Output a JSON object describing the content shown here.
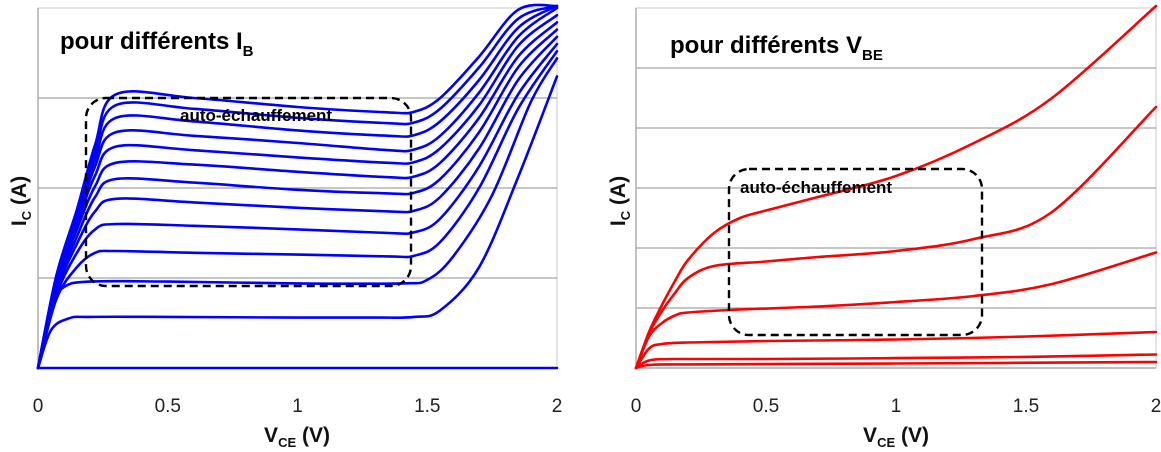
{
  "chart_data": [
    {
      "type": "line",
      "title": {
        "main": "pour différents I",
        "sub": "B"
      },
      "xlabel": {
        "main": "V",
        "sub": "CE",
        "suffix": " (V)"
      },
      "ylabel": {
        "main": "I",
        "sub": "C",
        "suffix": " (A)"
      },
      "xlim": [
        0,
        2
      ],
      "ylim": [
        0,
        10
      ],
      "x_ticks": [
        "0",
        "0.5",
        "1",
        "1.5",
        "2"
      ],
      "y_ticks_labeled": false,
      "grid": "horizontal",
      "color": "#0000ff",
      "annotation": {
        "text": "auto-échauffement",
        "box": "dashed"
      },
      "series": [
        {
          "values": [
            [
              0,
              0
            ],
            [
              2,
              0
            ]
          ]
        },
        {
          "values": [
            [
              0,
              0
            ],
            [
              0.05,
              1.05
            ],
            [
              0.12,
              1.38
            ],
            [
              0.2,
              1.42
            ],
            [
              0.5,
              1.42
            ],
            [
              1,
              1.4
            ],
            [
              1.3,
              1.4
            ],
            [
              1.45,
              1.42
            ],
            [
              1.55,
              1.6
            ],
            [
              1.7,
              2.8
            ],
            [
              1.85,
              5.3
            ],
            [
              2,
              8.1
            ]
          ]
        },
        {
          "values": [
            [
              0,
              0
            ],
            [
              0.05,
              1.7
            ],
            [
              0.1,
              2.25
            ],
            [
              0.2,
              2.4
            ],
            [
              0.5,
              2.4
            ],
            [
              1,
              2.35
            ],
            [
              1.4,
              2.35
            ],
            [
              1.5,
              2.45
            ],
            [
              1.6,
              3.1
            ],
            [
              1.75,
              4.8
            ],
            [
              1.9,
              7.4
            ],
            [
              2,
              8.6
            ]
          ]
        },
        {
          "values": [
            [
              0,
              0
            ],
            [
              0.07,
              1.9
            ],
            [
              0.15,
              2.8
            ],
            [
              0.22,
              3.2
            ],
            [
              0.3,
              3.25
            ],
            [
              0.6,
              3.2
            ],
            [
              1,
              3.15
            ],
            [
              1.35,
              3.1
            ],
            [
              1.45,
              3.12
            ],
            [
              1.55,
              3.5
            ],
            [
              1.7,
              5.0
            ],
            [
              1.85,
              7.2
            ],
            [
              2,
              8.8
            ]
          ]
        },
        {
          "values": [
            [
              0,
              0
            ],
            [
              0.07,
              2.0
            ],
            [
              0.15,
              3.2
            ],
            [
              0.22,
              3.85
            ],
            [
              0.3,
              4.0
            ],
            [
              0.6,
              3.95
            ],
            [
              1,
              3.85
            ],
            [
              1.35,
              3.75
            ],
            [
              1.45,
              3.77
            ],
            [
              1.55,
              4.15
            ],
            [
              1.7,
              5.6
            ],
            [
              1.85,
              7.6
            ],
            [
              2,
              9.0
            ]
          ]
        },
        {
          "values": [
            [
              0,
              0
            ],
            [
              0.07,
              2.1
            ],
            [
              0.15,
              3.45
            ],
            [
              0.22,
              4.35
            ],
            [
              0.3,
              4.7
            ],
            [
              0.6,
              4.6
            ],
            [
              1,
              4.45
            ],
            [
              1.35,
              4.35
            ],
            [
              1.45,
              4.37
            ],
            [
              1.55,
              4.75
            ],
            [
              1.7,
              6.1
            ],
            [
              1.85,
              8.0
            ],
            [
              2,
              9.2
            ]
          ]
        },
        {
          "values": [
            [
              0,
              0
            ],
            [
              0.07,
              2.2
            ],
            [
              0.15,
              3.65
            ],
            [
              0.22,
              4.75
            ],
            [
              0.3,
              5.25
            ],
            [
              0.6,
              5.15
            ],
            [
              1,
              4.95
            ],
            [
              1.35,
              4.85
            ],
            [
              1.45,
              4.87
            ],
            [
              1.55,
              5.25
            ],
            [
              1.7,
              6.55
            ],
            [
              1.85,
              8.35
            ],
            [
              2,
              9.4
            ]
          ]
        },
        {
          "values": [
            [
              0,
              0
            ],
            [
              0.07,
              2.3
            ],
            [
              0.15,
              3.85
            ],
            [
              0.22,
              5.05
            ],
            [
              0.3,
              5.7
            ],
            [
              0.6,
              5.65
            ],
            [
              1,
              5.45
            ],
            [
              1.35,
              5.3
            ],
            [
              1.45,
              5.32
            ],
            [
              1.55,
              5.7
            ],
            [
              1.7,
              6.95
            ],
            [
              1.85,
              8.65
            ],
            [
              2,
              9.6
            ]
          ]
        },
        {
          "values": [
            [
              0,
              0
            ],
            [
              0.07,
              2.35
            ],
            [
              0.15,
              4.0
            ],
            [
              0.22,
              5.35
            ],
            [
              0.3,
              6.15
            ],
            [
              0.6,
              6.05
            ],
            [
              1,
              5.85
            ],
            [
              1.35,
              5.7
            ],
            [
              1.45,
              5.72
            ],
            [
              1.55,
              6.1
            ],
            [
              1.7,
              7.3
            ],
            [
              1.85,
              8.95
            ],
            [
              2,
              9.8
            ]
          ]
        },
        {
          "values": [
            [
              0,
              0
            ],
            [
              0.07,
              2.4
            ],
            [
              0.15,
              4.1
            ],
            [
              0.22,
              5.6
            ],
            [
              0.3,
              6.55
            ],
            [
              0.6,
              6.45
            ],
            [
              1,
              6.25
            ],
            [
              1.35,
              6.05
            ],
            [
              1.45,
              6.07
            ],
            [
              1.55,
              6.45
            ],
            [
              1.7,
              7.65
            ],
            [
              1.85,
              9.2
            ],
            [
              2,
              10.0
            ]
          ]
        },
        {
          "values": [
            [
              0,
              0
            ],
            [
              0.07,
              2.45
            ],
            [
              0.15,
              4.2
            ],
            [
              0.22,
              5.8
            ],
            [
              0.3,
              6.95
            ],
            [
              0.6,
              6.85
            ],
            [
              1,
              6.6
            ],
            [
              1.35,
              6.45
            ],
            [
              1.45,
              6.47
            ],
            [
              1.55,
              6.85
            ],
            [
              1.7,
              8.0
            ],
            [
              1.85,
              9.45
            ],
            [
              2,
              10.2
            ]
          ]
        },
        {
          "values": [
            [
              0,
              0
            ],
            [
              0.07,
              2.5
            ],
            [
              0.15,
              4.3
            ],
            [
              0.22,
              6.0
            ],
            [
              0.3,
              7.3
            ],
            [
              0.6,
              7.2
            ],
            [
              1,
              6.95
            ],
            [
              1.35,
              6.8
            ],
            [
              1.45,
              6.82
            ],
            [
              1.55,
              7.2
            ],
            [
              1.7,
              8.35
            ],
            [
              1.85,
              9.7
            ],
            [
              2,
              10.4
            ]
          ]
        },
        {
          "values": [
            [
              0,
              0
            ],
            [
              0.07,
              2.55
            ],
            [
              0.15,
              4.4
            ],
            [
              0.22,
              6.2
            ],
            [
              0.3,
              7.6
            ],
            [
              0.6,
              7.5
            ],
            [
              1,
              7.25
            ],
            [
              1.35,
              7.1
            ],
            [
              1.45,
              7.12
            ],
            [
              1.55,
              7.5
            ],
            [
              1.7,
              8.65
            ],
            [
              1.85,
              9.95
            ],
            [
              2,
              10.95
            ]
          ]
        }
      ]
    },
    {
      "type": "line",
      "title": {
        "main": "pour différents V",
        "sub": "BE"
      },
      "xlabel": {
        "main": "V",
        "sub": "CE",
        "suffix": " (V)"
      },
      "ylabel": {
        "main": "I",
        "sub": "C",
        "suffix": " (A)"
      },
      "xlim": [
        0,
        2
      ],
      "ylim": [
        0,
        12
      ],
      "x_ticks": [
        "0",
        "0.5",
        "1",
        "1.5",
        "2"
      ],
      "y_ticks_labeled": false,
      "grid": "horizontal",
      "color": "#ff0000",
      "annotation": {
        "text": "auto-échauffement",
        "box": "dashed"
      },
      "series": [
        {
          "values": [
            [
              0,
              0
            ],
            [
              0.05,
              0.1
            ],
            [
              0.2,
              0.12
            ],
            [
              1,
              0.15
            ],
            [
              2,
              0.2
            ]
          ]
        },
        {
          "values": [
            [
              0,
              0
            ],
            [
              0.05,
              0.25
            ],
            [
              0.15,
              0.3
            ],
            [
              0.5,
              0.3
            ],
            [
              1,
              0.33
            ],
            [
              1.5,
              0.37
            ],
            [
              2,
              0.45
            ]
          ]
        },
        {
          "values": [
            [
              0,
              0
            ],
            [
              0.05,
              0.65
            ],
            [
              0.1,
              0.8
            ],
            [
              0.2,
              0.85
            ],
            [
              0.5,
              0.9
            ],
            [
              1,
              0.95
            ],
            [
              1.5,
              1.05
            ],
            [
              2,
              1.2
            ]
          ]
        },
        {
          "values": [
            [
              0,
              0
            ],
            [
              0.05,
              1.05
            ],
            [
              0.1,
              1.5
            ],
            [
              0.15,
              1.75
            ],
            [
              0.2,
              1.85
            ],
            [
              0.4,
              1.95
            ],
            [
              0.7,
              2.05
            ],
            [
              1,
              2.2
            ],
            [
              1.3,
              2.4
            ],
            [
              1.6,
              2.8
            ],
            [
              2,
              3.85
            ]
          ]
        },
        {
          "values": [
            [
              0,
              0
            ],
            [
              0.05,
              1.15
            ],
            [
              0.1,
              1.9
            ],
            [
              0.15,
              2.5
            ],
            [
              0.2,
              3.0
            ],
            [
              0.3,
              3.4
            ],
            [
              0.5,
              3.55
            ],
            [
              0.7,
              3.7
            ],
            [
              1,
              3.9
            ],
            [
              1.3,
              4.3
            ],
            [
              1.6,
              5.2
            ],
            [
              2,
              8.7
            ]
          ]
        },
        {
          "values": [
            [
              0,
              0
            ],
            [
              0.05,
              1.2
            ],
            [
              0.1,
              2.1
            ],
            [
              0.15,
              2.9
            ],
            [
              0.2,
              3.6
            ],
            [
              0.3,
              4.5
            ],
            [
              0.4,
              5.0
            ],
            [
              0.5,
              5.25
            ],
            [
              0.7,
              5.7
            ],
            [
              1,
              6.4
            ],
            [
              1.3,
              7.5
            ],
            [
              1.6,
              9.0
            ],
            [
              2,
              12.2
            ]
          ]
        }
      ]
    }
  ]
}
